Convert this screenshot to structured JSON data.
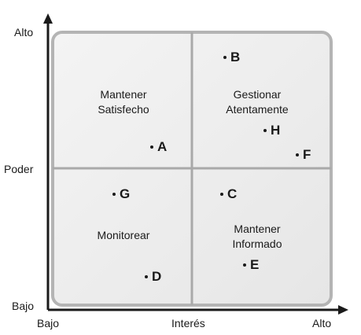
{
  "axes": {
    "y_top": "Alto",
    "y_mid": "Poder",
    "y_bottom": "Bajo",
    "x_left": "Bajo",
    "x_mid": "Interés",
    "x_right": "Alto"
  },
  "quadrants": {
    "top_left": "Mantener\nSatisfecho",
    "top_right": "Gestionar\nAtentamente",
    "bottom_left": "Monitorear",
    "bottom_right": "Mantener\nInformado"
  },
  "points": [
    {
      "label": "B"
    },
    {
      "label": "H"
    },
    {
      "label": "F"
    },
    {
      "label": "A"
    },
    {
      "label": "G"
    },
    {
      "label": "C"
    },
    {
      "label": "E"
    },
    {
      "label": "D"
    }
  ],
  "colors": {
    "panel_fill": "#ebebeb",
    "panel_border": "#b4b4b4",
    "divider": "#a9a9a9",
    "axis": "#1a1a1a"
  }
}
